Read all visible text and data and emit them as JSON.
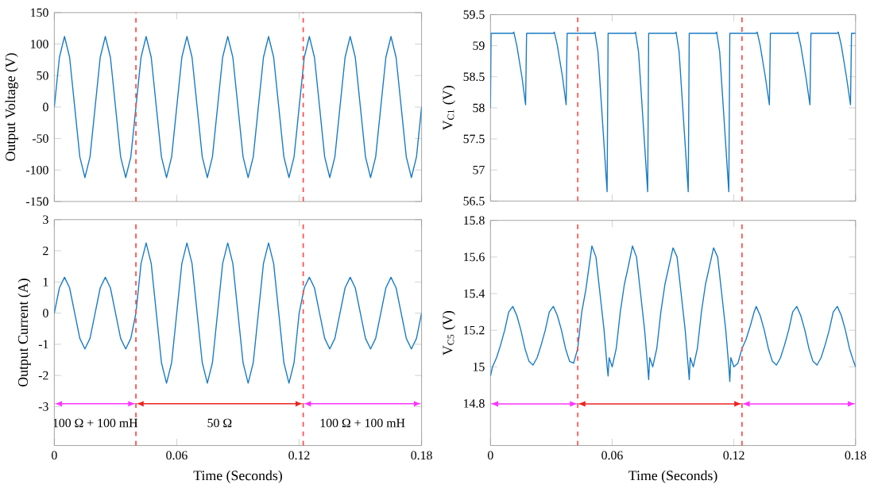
{
  "chart_data": [
    {
      "type": "line",
      "ylabel": "Output Voltage (V)",
      "xlim": [
        0,
        0.18
      ],
      "xticks": [
        0,
        0.06,
        0.12,
        0.18
      ],
      "ylim": [
        -150,
        150
      ],
      "yticks": [
        -150,
        -100,
        -50,
        0,
        50,
        100,
        150
      ],
      "tick_labels": "y",
      "series": [
        {
          "color": "#1a7bc4",
          "x": [
            0,
            0.0025,
            0.005,
            0.0075,
            0.01,
            0.0125,
            0.015,
            0.0175,
            0.02,
            0.0225,
            0.025,
            0.0275,
            0.03,
            0.0325,
            0.035,
            0.0375,
            0.04,
            0.0425,
            0.045,
            0.0475,
            0.05,
            0.0525,
            0.055,
            0.0575,
            0.06,
            0.0625,
            0.065,
            0.0675,
            0.07,
            0.0725,
            0.075,
            0.0775,
            0.08,
            0.0825,
            0.085,
            0.0875,
            0.09,
            0.0925,
            0.095,
            0.0975,
            0.1,
            0.1025,
            0.105,
            0.1075,
            0.11,
            0.1125,
            0.115,
            0.1175,
            0.12,
            0.1225,
            0.125,
            0.1275,
            0.13,
            0.1325,
            0.135,
            0.1375,
            0.14,
            0.1425,
            0.145,
            0.1475,
            0.15,
            0.1525,
            0.155,
            0.1575,
            0.16,
            0.1625,
            0.165,
            0.1675,
            0.17,
            0.1725,
            0.175,
            0.1775,
            0.18
          ],
          "values": [
            0,
            79,
            112,
            79,
            0,
            -79,
            -112,
            -79,
            0,
            79,
            112,
            79,
            0,
            -79,
            -112,
            -79,
            0,
            79,
            112,
            79,
            0,
            -79,
            -112,
            -79,
            0,
            79,
            112,
            79,
            0,
            -79,
            -112,
            -79,
            0,
            79,
            112,
            79,
            0,
            -79,
            -112,
            -79,
            0,
            79,
            112,
            79,
            0,
            -79,
            -112,
            -79,
            0,
            79,
            112,
            79,
            0,
            -79,
            -112,
            -79,
            0,
            79,
            112,
            79,
            0,
            -79,
            -112,
            -79,
            0,
            79,
            112,
            79,
            0,
            -79,
            -112,
            -79,
            0
          ]
        }
      ],
      "ref_lines": [
        {
          "axis": "x",
          "value": 0.04,
          "color": "#ff4d4d",
          "line_style": "dashed"
        },
        {
          "axis": "x",
          "value": 0.122,
          "color": "#ff4d4d",
          "line_style": "dashed"
        }
      ]
    },
    {
      "type": "line",
      "ylabel": "V$_{C1}$ (V)",
      "xlim": [
        0,
        0.18
      ],
      "xticks": [
        0,
        0.06,
        0.12,
        0.18
      ],
      "ylim": [
        56.5,
        59.5
      ],
      "yticks": [
        56.5,
        57,
        57.5,
        58,
        58.5,
        59,
        59.5
      ],
      "tick_labels": "y",
      "series": [
        {
          "color": "#1a7bc4",
          "x": [
            0,
            0.0003,
            0.011,
            0.0115,
            0.013,
            0.0155,
            0.0173,
            0.0178,
            0.031,
            0.0315,
            0.033,
            0.0355,
            0.0373,
            0.0378,
            0.051,
            0.0515,
            0.053,
            0.0575,
            0.058,
            0.071,
            0.0715,
            0.073,
            0.0775,
            0.078,
            0.091,
            0.0915,
            0.093,
            0.0975,
            0.098,
            0.111,
            0.1115,
            0.113,
            0.1175,
            0.118,
            0.131,
            0.1315,
            0.133,
            0.1355,
            0.1375,
            0.138,
            0.151,
            0.1515,
            0.153,
            0.1555,
            0.1575,
            0.158,
            0.171,
            0.1715,
            0.173,
            0.1755,
            0.1775,
            0.178,
            0.18
          ],
          "values": [
            58,
            59.2,
            59.2,
            59.22,
            59,
            58.5,
            58.05,
            59.2,
            59.2,
            59.22,
            59,
            58.5,
            58.05,
            59.2,
            59.2,
            59.22,
            58.9,
            56.65,
            59.2,
            59.2,
            59.22,
            58.9,
            56.65,
            59.2,
            59.2,
            59.22,
            58.9,
            56.65,
            59.2,
            59.2,
            59.22,
            58.9,
            56.65,
            59.2,
            59.2,
            59.22,
            59,
            58.5,
            58.05,
            59.2,
            59.2,
            59.22,
            59,
            58.5,
            58.05,
            59.2,
            59.2,
            59.22,
            59,
            58.5,
            58.05,
            59.2,
            59.2
          ]
        }
      ],
      "ref_lines": [
        {
          "axis": "x",
          "value": 0.043,
          "color": "#ff4d4d",
          "line_style": "dashed"
        },
        {
          "axis": "x",
          "value": 0.124,
          "color": "#ff4d4d",
          "line_style": "dashed"
        }
      ]
    },
    {
      "type": "line",
      "xlabel": "Time (Seconds)",
      "ylabel": "Output Current (A)",
      "xlim": [
        0,
        0.18
      ],
      "xticks": [
        0,
        0.06,
        0.12,
        0.18
      ],
      "ylim": [
        -4.25,
        3
      ],
      "yticks": [
        -3,
        -2,
        -1,
        0,
        1,
        2,
        3
      ],
      "series": [
        {
          "color": "#1a7bc4",
          "x": [
            0,
            0.0025,
            0.005,
            0.0075,
            0.01,
            0.0125,
            0.015,
            0.0175,
            0.02,
            0.0225,
            0.025,
            0.0275,
            0.03,
            0.0325,
            0.035,
            0.0375,
            0.04,
            0.0425,
            0.045,
            0.0475,
            0.05,
            0.0525,
            0.055,
            0.0575,
            0.06,
            0.0625,
            0.065,
            0.0675,
            0.07,
            0.0725,
            0.075,
            0.0775,
            0.08,
            0.0825,
            0.085,
            0.0875,
            0.09,
            0.0925,
            0.095,
            0.0975,
            0.1,
            0.1025,
            0.105,
            0.1075,
            0.11,
            0.1125,
            0.115,
            0.1175,
            0.12,
            0.1225,
            0.125,
            0.1275,
            0.13,
            0.1325,
            0.135,
            0.1375,
            0.14,
            0.1425,
            0.145,
            0.1475,
            0.15,
            0.1525,
            0.155,
            0.1575,
            0.16,
            0.1625,
            0.165,
            0.1675,
            0.17,
            0.1725,
            0.175,
            0.1775,
            0.18
          ],
          "values": [
            0,
            0.81,
            1.15,
            0.81,
            0,
            -0.81,
            -1.15,
            -0.81,
            0,
            0.81,
            1.15,
            0.81,
            0,
            -0.81,
            -1.15,
            -0.81,
            0,
            1.59,
            2.25,
            1.59,
            0,
            -1.59,
            -2.25,
            -1.59,
            0,
            1.59,
            2.25,
            1.59,
            0,
            -1.59,
            -2.25,
            -1.59,
            0,
            1.59,
            2.25,
            1.59,
            0,
            -1.59,
            -2.25,
            -1.59,
            0,
            1.59,
            2.25,
            1.59,
            0,
            -1.59,
            -2.25,
            -1.59,
            0,
            0.81,
            1.15,
            0.81,
            0,
            -0.81,
            -1.15,
            -0.81,
            0,
            0.81,
            1.15,
            0.81,
            0,
            -0.81,
            -1.15,
            -0.81,
            0,
            0.81,
            1.15,
            0.81,
            0,
            -0.81,
            -1.15,
            -0.81,
            0
          ]
        }
      ],
      "ref_lines": [
        {
          "axis": "x",
          "value": 0.04,
          "color": "#ff4d4d",
          "line_style": "dashed"
        },
        {
          "axis": "x",
          "value": 0.122,
          "color": "#ff4d4d",
          "line_style": "dashed"
        }
      ],
      "annotations": [
        "100 Ω + 100 mH",
        "50 Ω",
        "100 Ω + 100 mH"
      ]
    },
    {
      "type": "line",
      "xlabel": "Time (Seconds)",
      "ylabel": "V$_{C5}$ (V)",
      "xlim": [
        0,
        0.18
      ],
      "xticks": [
        0,
        0.06,
        0.12,
        0.18
      ],
      "ylim": [
        14.57,
        15.8
      ],
      "yticks": [
        14.8,
        15,
        15.2,
        15.4,
        15.6,
        15.8
      ],
      "series": [
        {
          "color": "#1a7bc4",
          "x": [
            0,
            0.001,
            0.003,
            0.005,
            0.007,
            0.009,
            0.011,
            0.013,
            0.015,
            0.017,
            0.019,
            0.021,
            0.023,
            0.025,
            0.027,
            0.029,
            0.031,
            0.033,
            0.035,
            0.037,
            0.039,
            0.041,
            0.043,
            0.045,
            0.047,
            0.048,
            0.05,
            0.052,
            0.054,
            0.056,
            0.0575,
            0.058,
            0.0585,
            0.06,
            0.062,
            0.064,
            0.066,
            0.068,
            0.07,
            0.072,
            0.074,
            0.076,
            0.0775,
            0.078,
            0.0785,
            0.08,
            0.082,
            0.084,
            0.086,
            0.088,
            0.09,
            0.092,
            0.094,
            0.096,
            0.0975,
            0.098,
            0.0985,
            0.1,
            0.102,
            0.104,
            0.106,
            0.108,
            0.11,
            0.112,
            0.114,
            0.116,
            0.1175,
            0.118,
            0.1185,
            0.12,
            0.122,
            0.124,
            0.126,
            0.128,
            0.13,
            0.131,
            0.133,
            0.135,
            0.137,
            0.139,
            0.141,
            0.143,
            0.145,
            0.147,
            0.149,
            0.151,
            0.153,
            0.155,
            0.157,
            0.159,
            0.161,
            0.163,
            0.165,
            0.167,
            0.169,
            0.171,
            0.173,
            0.175,
            0.177,
            0.179,
            0.18
          ],
          "values": [
            14.95,
            15,
            15.05,
            15.12,
            15.2,
            15.3,
            15.33,
            15.28,
            15.2,
            15.1,
            15.03,
            15.01,
            15.05,
            15.12,
            15.2,
            15.3,
            15.33,
            15.28,
            15.2,
            15.1,
            15.03,
            15.02,
            15.1,
            15.3,
            15.42,
            15.5,
            15.66,
            15.6,
            15.4,
            15.2,
            15,
            14.95,
            15.05,
            15,
            15.1,
            15.3,
            15.45,
            15.55,
            15.66,
            15.6,
            15.4,
            15.2,
            15,
            14.93,
            15.05,
            15,
            15.1,
            15.3,
            15.45,
            15.55,
            15.65,
            15.6,
            15.4,
            15.2,
            15,
            14.93,
            15.05,
            15,
            15.1,
            15.3,
            15.45,
            15.55,
            15.65,
            15.6,
            15.4,
            15.2,
            15,
            14.92,
            15.05,
            15,
            15.02,
            15.1,
            15.15,
            15.22,
            15.3,
            15.33,
            15.28,
            15.2,
            15.1,
            15.03,
            15.01,
            15.05,
            15.12,
            15.2,
            15.3,
            15.33,
            15.28,
            15.2,
            15.1,
            15.03,
            15.01,
            15.05,
            15.12,
            15.2,
            15.3,
            15.33,
            15.28,
            15.2,
            15.1,
            15.03,
            15
          ]
        }
      ],
      "ref_lines": [
        {
          "axis": "x",
          "value": 0.043,
          "color": "#ff4d4d",
          "line_style": "dashed"
        },
        {
          "axis": "x",
          "value": 0.124,
          "color": "#ff4d4d",
          "line_style": "dashed"
        }
      ]
    }
  ]
}
